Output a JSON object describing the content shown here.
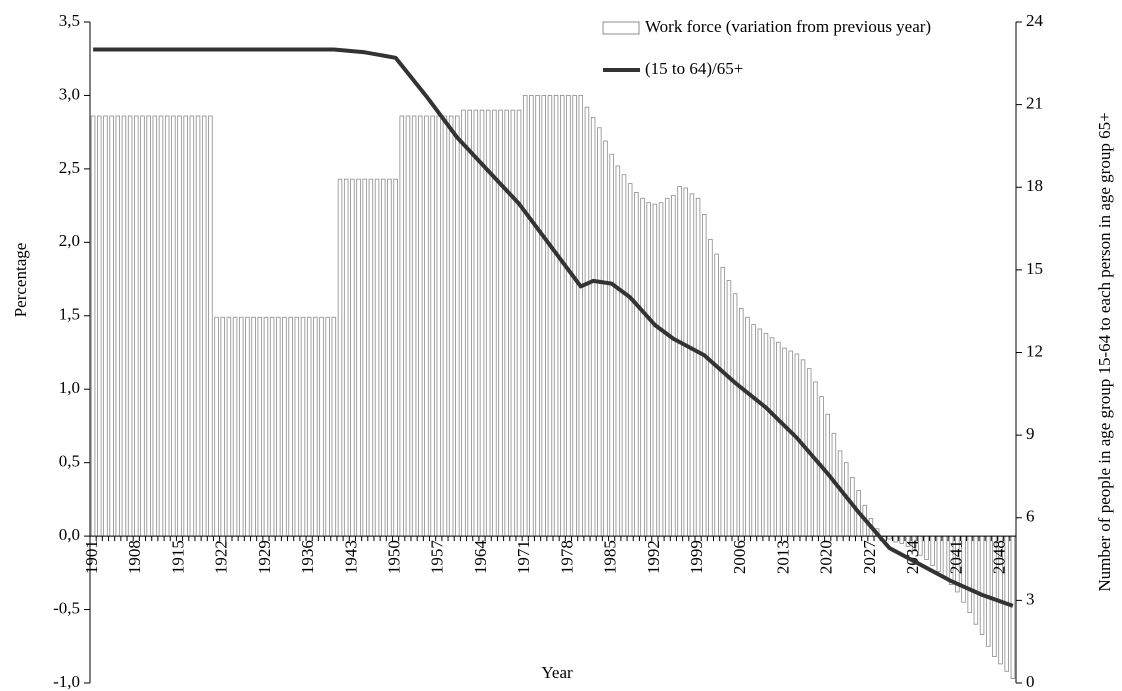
{
  "chart_data": {
    "type": "bar-line",
    "x_label": "Year",
    "y_label": "Percentage",
    "y2_label": "Number of people in age group 15-64 to each person in age group 65+",
    "x": [
      1901,
      1902,
      1903,
      1904,
      1905,
      1906,
      1907,
      1908,
      1909,
      1910,
      1911,
      1912,
      1913,
      1914,
      1915,
      1916,
      1917,
      1918,
      1919,
      1920,
      1921,
      1922,
      1923,
      1924,
      1925,
      1926,
      1927,
      1928,
      1929,
      1930,
      1931,
      1932,
      1933,
      1934,
      1935,
      1936,
      1937,
      1938,
      1939,
      1940,
      1941,
      1942,
      1943,
      1944,
      1945,
      1946,
      1947,
      1948,
      1949,
      1950,
      1951,
      1952,
      1953,
      1954,
      1955,
      1956,
      1957,
      1958,
      1959,
      1960,
      1961,
      1962,
      1963,
      1964,
      1965,
      1966,
      1967,
      1968,
      1969,
      1970,
      1971,
      1972,
      1973,
      1974,
      1975,
      1976,
      1977,
      1978,
      1979,
      1980,
      1981,
      1982,
      1983,
      1984,
      1985,
      1986,
      1987,
      1988,
      1989,
      1990,
      1991,
      1992,
      1993,
      1994,
      1995,
      1996,
      1997,
      1998,
      1999,
      2000,
      2001,
      2002,
      2003,
      2004,
      2005,
      2006,
      2007,
      2008,
      2009,
      2010,
      2011,
      2012,
      2013,
      2014,
      2015,
      2016,
      2017,
      2018,
      2019,
      2020,
      2021,
      2022,
      2023,
      2024,
      2025,
      2026,
      2027,
      2028,
      2029,
      2030,
      2031,
      2032,
      2033,
      2034,
      2035,
      2036,
      2037,
      2038,
      2039,
      2040,
      2041,
      2042,
      2043,
      2044,
      2045,
      2046,
      2047,
      2048,
      2049,
      2050
    ],
    "xlim": [
      1900.5,
      2050.5
    ],
    "xticks": [
      1901,
      1908,
      1915,
      1922,
      1929,
      1936,
      1943,
      1950,
      1957,
      1964,
      1971,
      1978,
      1985,
      1992,
      1999,
      2006,
      2013,
      2020,
      2027,
      2034,
      2041,
      2048
    ],
    "ylim": [
      -1,
      3.5
    ],
    "yticks": [
      {
        "value": -1,
        "label": "-1,0"
      },
      {
        "value": -0.5,
        "label": "-0,5"
      },
      {
        "value": 0,
        "label": "0,0"
      },
      {
        "value": 0.5,
        "label": "0,5"
      },
      {
        "value": 1,
        "label": "1,0"
      },
      {
        "value": 1.5,
        "label": "1,5"
      },
      {
        "value": 2,
        "label": "2,0"
      },
      {
        "value": 2.5,
        "label": "2,5"
      },
      {
        "value": 3,
        "label": "3,0"
      },
      {
        "value": 3.5,
        "label": "3,5"
      }
    ],
    "y2lim": [
      0,
      24
    ],
    "y2ticks": [
      0,
      3,
      6,
      9,
      12,
      15,
      18,
      21,
      24
    ],
    "series": [
      {
        "name": "Work force (variation from previous year)",
        "color": "#8c8c8c",
        "values": [
          2.86,
          2.86,
          2.86,
          2.86,
          2.86,
          2.86,
          2.86,
          2.86,
          2.86,
          2.86,
          2.86,
          2.86,
          2.86,
          2.86,
          2.86,
          2.86,
          2.86,
          2.86,
          2.86,
          2.86,
          1.49,
          1.49,
          1.49,
          1.49,
          1.49,
          1.49,
          1.49,
          1.49,
          1.49,
          1.49,
          1.49,
          1.49,
          1.49,
          1.49,
          1.49,
          1.49,
          1.49,
          1.49,
          1.49,
          1.49,
          2.43,
          2.43,
          2.43,
          2.43,
          2.43,
          2.43,
          2.43,
          2.43,
          2.43,
          2.43,
          2.86,
          2.86,
          2.86,
          2.86,
          2.86,
          2.86,
          2.86,
          2.86,
          2.86,
          2.86,
          2.9,
          2.9,
          2.9,
          2.9,
          2.9,
          2.9,
          2.9,
          2.9,
          2.9,
          2.9,
          3.0,
          3.0,
          3.0,
          3.0,
          3.0,
          3.0,
          3.0,
          3.0,
          3.0,
          3.0,
          2.92,
          2.85,
          2.78,
          2.69,
          2.6,
          2.52,
          2.46,
          2.4,
          2.34,
          2.3,
          2.27,
          2.26,
          2.27,
          2.3,
          2.32,
          2.38,
          2.37,
          2.33,
          2.3,
          2.19,
          2.02,
          1.92,
          1.83,
          1.74,
          1.65,
          1.55,
          1.49,
          1.44,
          1.41,
          1.38,
          1.35,
          1.32,
          1.28,
          1.26,
          1.24,
          1.2,
          1.14,
          1.05,
          0.95,
          0.83,
          0.7,
          0.58,
          0.5,
          0.4,
          0.31,
          0.21,
          0.12,
          0.05,
          0,
          -0.02,
          -0.04,
          -0.05,
          -0.07,
          -0.1,
          -0.13,
          -0.16,
          -0.2,
          -0.24,
          -0.28,
          -0.33,
          -0.38,
          -0.45,
          -0.52,
          -0.6,
          -0.67,
          -0.75,
          -0.82,
          -0.87,
          -0.92,
          -0.97
        ]
      },
      {
        "name": "(15 to 64)/65+",
        "color": "#333333",
        "axis": "y2",
        "x": [
          1901,
          1940,
          1945,
          1950,
          1955,
          1960,
          1965,
          1970,
          1975,
          1980,
          1982,
          1985,
          1988,
          1992,
          1995,
          2000,
          2005,
          2010,
          2015,
          2020,
          2025,
          2030,
          2035,
          2040,
          2045,
          2050
        ],
        "values": [
          23,
          23,
          22.9,
          22.7,
          21.3,
          19.8,
          18.6,
          17.4,
          15.9,
          14.4,
          14.6,
          14.5,
          14.0,
          13.0,
          12.5,
          11.9,
          10.9,
          10.0,
          8.9,
          7.6,
          6.2,
          4.9,
          4.3,
          3.7,
          3.2,
          2.8
        ]
      }
    ]
  }
}
